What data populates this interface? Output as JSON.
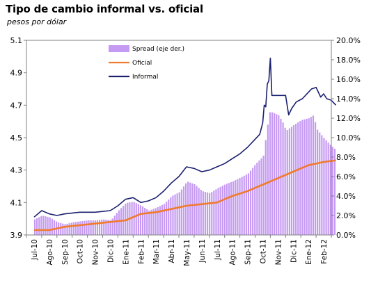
{
  "chart_data": {
    "type": "line",
    "title": "Tipo de cambio informal  vs. oficial",
    "subtitle": "pesos por dólar",
    "x": [
      "Jul-10",
      "Ago-10",
      "Sep-10",
      "Oct-10",
      "Nov-10",
      "Dic-10",
      "Ene-11",
      "Feb-11",
      "Mar-11",
      "Abr-11",
      "May-11",
      "Jun-11",
      "Jul-11",
      "Ago-11",
      "Sep-11",
      "Oct-11",
      "Nov-11",
      "Dic-11",
      "Ene-12",
      "Feb-12"
    ],
    "y_left": {
      "ticks": [
        "3.9",
        "4.1",
        "4.3",
        "4.5",
        "4.7",
        "4.9",
        "5.1"
      ],
      "ylim": [
        3.9,
        5.1
      ]
    },
    "y_right": {
      "ticks": [
        "0.0%",
        "2.0%",
        "4.0%",
        "6.0%",
        "8.0%",
        "10.0%",
        "12.0%",
        "14.0%",
        "16.0%",
        "18.0%",
        "20.0%"
      ],
      "ylim": [
        0,
        20
      ]
    },
    "legend_position": "top-left",
    "series": [
      {
        "name": "Spread (eje der.)",
        "axis": "right",
        "kind": "bar",
        "color": "#c59af2",
        "points": [
          [
            0,
            1.6
          ],
          [
            0.5,
            2.0
          ],
          [
            1,
            1.8
          ],
          [
            1.5,
            1.3
          ],
          [
            2,
            1.1
          ],
          [
            2.5,
            1.3
          ],
          [
            3,
            1.4
          ],
          [
            3.5,
            1.5
          ],
          [
            4,
            1.5
          ],
          [
            4.5,
            1.6
          ],
          [
            5,
            1.5
          ],
          [
            5.5,
            2.5
          ],
          [
            6,
            3.3
          ],
          [
            6.5,
            3.4
          ],
          [
            7,
            3.0
          ],
          [
            7.5,
            2.5
          ],
          [
            8,
            2.8
          ],
          [
            8.5,
            3.2
          ],
          [
            9,
            4.0
          ],
          [
            9.5,
            4.4
          ],
          [
            10,
            5.5
          ],
          [
            10.5,
            5.2
          ],
          [
            11,
            4.5
          ],
          [
            11.5,
            4.3
          ],
          [
            12,
            4.8
          ],
          [
            12.5,
            5.2
          ],
          [
            13,
            5.5
          ],
          [
            13.5,
            5.9
          ],
          [
            14,
            6.3
          ],
          [
            14.5,
            7.3
          ],
          [
            15,
            8.1
          ],
          [
            15.4,
            12.6
          ],
          [
            15.6,
            12.6
          ],
          [
            16,
            12.3
          ],
          [
            16.3,
            11.5
          ],
          [
            16.5,
            10.7
          ],
          [
            17,
            11.3
          ],
          [
            17.5,
            11.8
          ],
          [
            18,
            12.0
          ],
          [
            18.3,
            12.3
          ],
          [
            18.5,
            10.9
          ],
          [
            19,
            9.9
          ],
          [
            19.5,
            9.1
          ],
          [
            19.8,
            8.7
          ]
        ]
      },
      {
        "name": "Oficial",
        "axis": "left",
        "kind": "line",
        "color": "#f07a2e",
        "points": [
          [
            0,
            3.93
          ],
          [
            1,
            3.93
          ],
          [
            2,
            3.95
          ],
          [
            3,
            3.96
          ],
          [
            4,
            3.97
          ],
          [
            5,
            3.98
          ],
          [
            6,
            3.99
          ],
          [
            7,
            4.03
          ],
          [
            8,
            4.04
          ],
          [
            9,
            4.06
          ],
          [
            10,
            4.08
          ],
          [
            11,
            4.09
          ],
          [
            12,
            4.1
          ],
          [
            13,
            4.14
          ],
          [
            14,
            4.17
          ],
          [
            15,
            4.21
          ],
          [
            16,
            4.25
          ],
          [
            17,
            4.29
          ],
          [
            18,
            4.33
          ],
          [
            19,
            4.35
          ],
          [
            19.8,
            4.36
          ]
        ]
      },
      {
        "name": "Informal",
        "axis": "left",
        "kind": "line",
        "color": "#1a1f6e",
        "points": [
          [
            0,
            4.01
          ],
          [
            0.5,
            4.05
          ],
          [
            1,
            4.03
          ],
          [
            1.5,
            4.02
          ],
          [
            2,
            4.03
          ],
          [
            3,
            4.04
          ],
          [
            4,
            4.04
          ],
          [
            5,
            4.05
          ],
          [
            5.5,
            4.08
          ],
          [
            6,
            4.12
          ],
          [
            6.5,
            4.13
          ],
          [
            7,
            4.1
          ],
          [
            7.5,
            4.11
          ],
          [
            8,
            4.13
          ],
          [
            8.5,
            4.17
          ],
          [
            9,
            4.22
          ],
          [
            9.5,
            4.26
          ],
          [
            10,
            4.32
          ],
          [
            10.5,
            4.31
          ],
          [
            11,
            4.29
          ],
          [
            11.5,
            4.3
          ],
          [
            12,
            4.32
          ],
          [
            12.5,
            4.34
          ],
          [
            13,
            4.37
          ],
          [
            13.5,
            4.4
          ],
          [
            14,
            4.44
          ],
          [
            14.5,
            4.49
          ],
          [
            14.8,
            4.52
          ],
          [
            15,
            4.59
          ],
          [
            15.1,
            4.7
          ],
          [
            15.2,
            4.69
          ],
          [
            15.3,
            4.83
          ],
          [
            15.4,
            4.85
          ],
          [
            15.5,
            4.99
          ],
          [
            15.6,
            4.76
          ],
          [
            16,
            4.76
          ],
          [
            16.3,
            4.76
          ],
          [
            16.5,
            4.76
          ],
          [
            16.7,
            4.64
          ],
          [
            16.9,
            4.68
          ],
          [
            17.2,
            4.72
          ],
          [
            17.6,
            4.74
          ],
          [
            18,
            4.78
          ],
          [
            18.2,
            4.8
          ],
          [
            18.5,
            4.81
          ],
          [
            18.8,
            4.75
          ],
          [
            19,
            4.77
          ],
          [
            19.2,
            4.74
          ],
          [
            19.5,
            4.73
          ],
          [
            19.8,
            4.7
          ]
        ]
      }
    ]
  }
}
